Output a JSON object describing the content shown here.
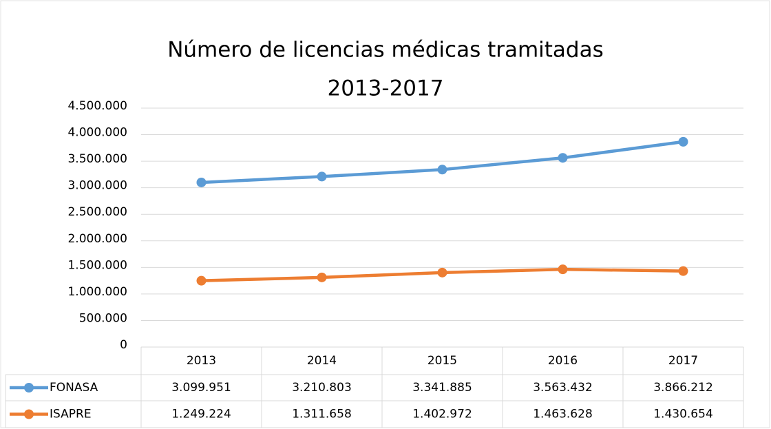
{
  "chart_data": {
    "type": "line",
    "title": [
      "Número de licencias médicas tramitadas",
      "2013-2017"
    ],
    "categories": [
      "2013",
      "2014",
      "2015",
      "2016",
      "2017"
    ],
    "series": [
      {
        "name": "FONASA",
        "color": "#5b9bd5",
        "values": [
          3099951,
          3210803,
          3341885,
          3563432,
          3866212
        ],
        "value_labels": [
          "3.099.951",
          "3.210.803",
          "3.341.885",
          "3.563.432",
          "3.866.212"
        ]
      },
      {
        "name": "ISAPRE",
        "color": "#ed7d31",
        "values": [
          1249224,
          1311658,
          1402972,
          1463628,
          1430654
        ],
        "value_labels": [
          "1.249.224",
          "1.311.658",
          "1.402.972",
          "1.463.628",
          "1.430.654"
        ]
      }
    ],
    "ylim": [
      0,
      4500000
    ],
    "yticks": [
      0,
      {
        "value": 500000,
        "label": "500.000"
      },
      {
        "value": 1000000,
        "label": "1.000.000"
      },
      {
        "value": 1500000,
        "label": "1.500.000"
      },
      {
        "value": 2000000,
        "label": "2.000.000"
      },
      {
        "value": 2500000,
        "label": "2.500.000"
      },
      {
        "value": 3000000,
        "label": "3.000.000"
      },
      {
        "value": 3500000,
        "label": "3.500.000"
      },
      {
        "value": 4000000,
        "label": "4.000.000"
      },
      {
        "value": 4500000,
        "label": "4.500.000"
      }
    ],
    "grid": true
  }
}
